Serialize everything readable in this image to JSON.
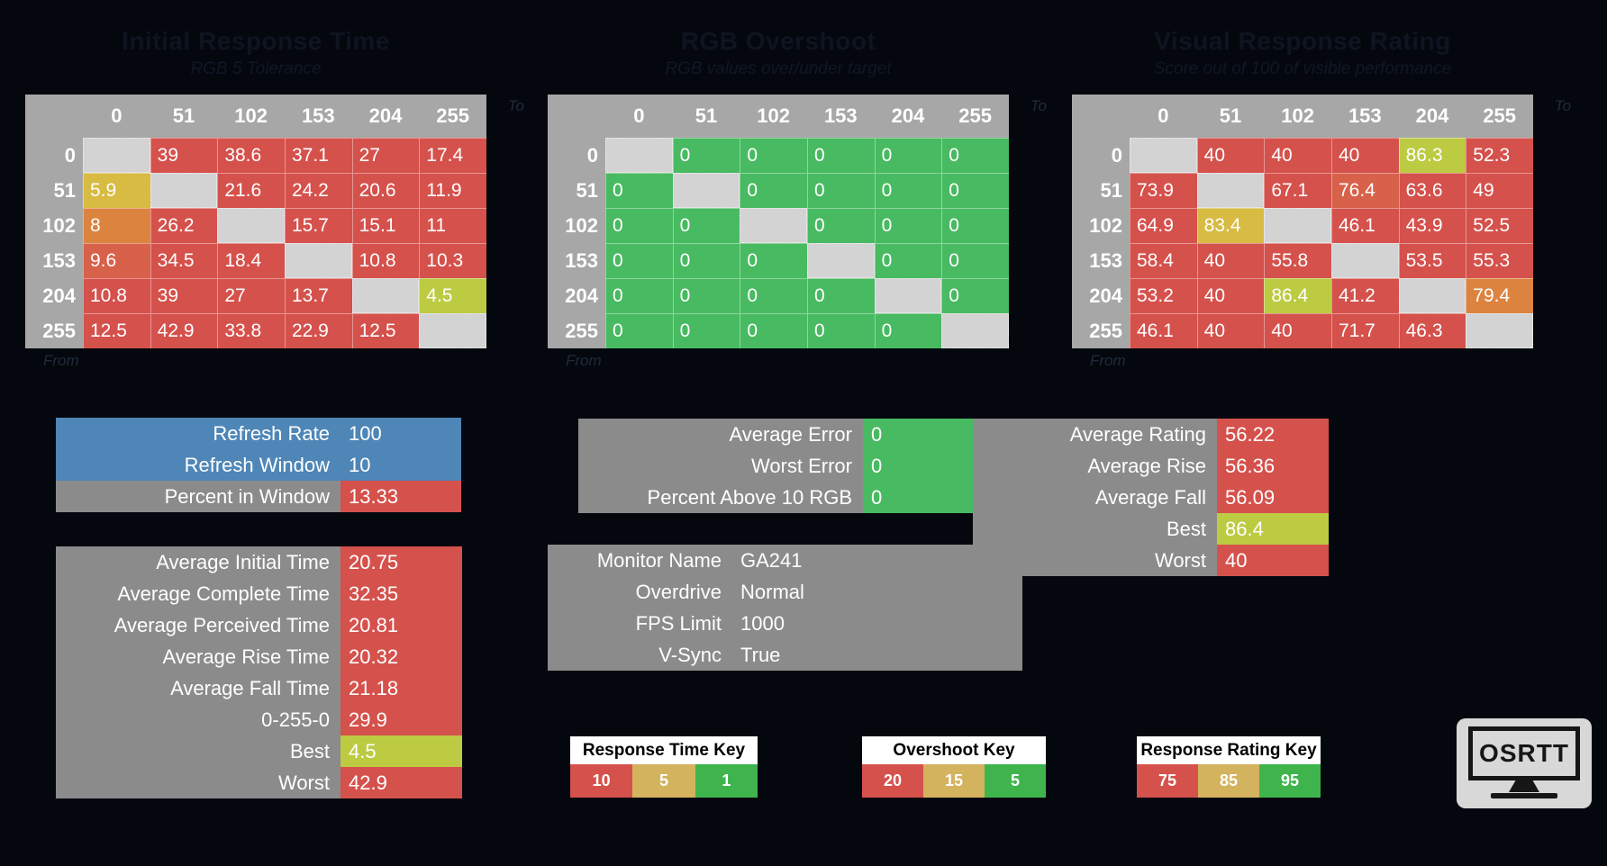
{
  "colors": {
    "bg": "#04080e",
    "header_grey": "#a7a7a7",
    "diag": "#d3d3d3",
    "red": "#d5514c",
    "red_orange": "#d8614a",
    "orange": "#dd8340",
    "yellow": "#d7bb42",
    "yellow_green": "#bccb42",
    "green": "#48ba61",
    "key_green": "#3fb44d",
    "tan": "#d3b35e",
    "blue": "#4e86b7",
    "grey": "#8b8b8b"
  },
  "chart_data": [
    {
      "type": "heatmap",
      "title": "Initial Response Time",
      "subtitle": "RGB 5 Tolerance",
      "axis_top_label": "To",
      "axis_left_label": "From",
      "x_labels": [
        "0",
        "51",
        "102",
        "153",
        "204",
        "255"
      ],
      "y_labels": [
        "0",
        "51",
        "102",
        "153",
        "204",
        "255"
      ],
      "values": [
        [
          null,
          39,
          38.6,
          37.1,
          27,
          17.4
        ],
        [
          5.9,
          null,
          21.6,
          24.2,
          20.6,
          11.9
        ],
        [
          8,
          26.2,
          null,
          15.7,
          15.1,
          11
        ],
        [
          9.6,
          34.5,
          18.4,
          null,
          10.8,
          10.3
        ],
        [
          10.8,
          39,
          27,
          13.7,
          null,
          4.5
        ],
        [
          12.5,
          42.9,
          33.8,
          22.9,
          12.5,
          null
        ]
      ],
      "cell_colors": [
        [
          "diag",
          "red",
          "red",
          "red",
          "red",
          "red"
        ],
        [
          "yellow",
          "diag",
          "red",
          "red",
          "red",
          "red"
        ],
        [
          "orange",
          "red",
          "diag",
          "red",
          "red",
          "red"
        ],
        [
          "red_orange",
          "red",
          "red",
          "diag",
          "red",
          "red"
        ],
        [
          "red",
          "red",
          "red",
          "red",
          "diag",
          "yellow_green"
        ],
        [
          "red",
          "red",
          "red",
          "red",
          "red",
          "diag"
        ]
      ]
    },
    {
      "type": "heatmap",
      "title": "RGB Overshoot",
      "subtitle": "RGB values over/under target",
      "axis_top_label": "To",
      "axis_left_label": "From",
      "x_labels": [
        "0",
        "51",
        "102",
        "153",
        "204",
        "255"
      ],
      "y_labels": [
        "0",
        "51",
        "102",
        "153",
        "204",
        "255"
      ],
      "values": [
        [
          null,
          0,
          0,
          0,
          0,
          0
        ],
        [
          0,
          null,
          0,
          0,
          0,
          0
        ],
        [
          0,
          0,
          null,
          0,
          0,
          0
        ],
        [
          0,
          0,
          0,
          null,
          0,
          0
        ],
        [
          0,
          0,
          0,
          0,
          null,
          0
        ],
        [
          0,
          0,
          0,
          0,
          0,
          null
        ]
      ],
      "cell_colors": [
        [
          "diag",
          "green",
          "green",
          "green",
          "green",
          "green"
        ],
        [
          "green",
          "diag",
          "green",
          "green",
          "green",
          "green"
        ],
        [
          "green",
          "green",
          "diag",
          "green",
          "green",
          "green"
        ],
        [
          "green",
          "green",
          "green",
          "diag",
          "green",
          "green"
        ],
        [
          "green",
          "green",
          "green",
          "green",
          "diag",
          "green"
        ],
        [
          "green",
          "green",
          "green",
          "green",
          "green",
          "diag"
        ]
      ]
    },
    {
      "type": "heatmap",
      "title": "Visual Response Rating",
      "subtitle": "Score out of 100 of visible performance",
      "axis_top_label": "To",
      "axis_left_label": "From",
      "x_labels": [
        "0",
        "51",
        "102",
        "153",
        "204",
        "255"
      ],
      "y_labels": [
        "0",
        "51",
        "102",
        "153",
        "204",
        "255"
      ],
      "values": [
        [
          null,
          40,
          40,
          40,
          86.3,
          52.3
        ],
        [
          73.9,
          null,
          67.1,
          76.4,
          63.6,
          49
        ],
        [
          64.9,
          83.4,
          null,
          46.1,
          43.9,
          52.5
        ],
        [
          58.4,
          40,
          55.8,
          null,
          53.5,
          55.3
        ],
        [
          53.2,
          40,
          86.4,
          41.2,
          null,
          79.4
        ],
        [
          46.1,
          40,
          40,
          71.7,
          46.3,
          null
        ]
      ],
      "cell_colors": [
        [
          "diag",
          "red",
          "red",
          "red",
          "yellow_green",
          "red"
        ],
        [
          "red",
          "diag",
          "red",
          "red_orange",
          "red",
          "red"
        ],
        [
          "red",
          "yellow",
          "diag",
          "red",
          "red",
          "red"
        ],
        [
          "red",
          "red",
          "red",
          "diag",
          "red",
          "red"
        ],
        [
          "red",
          "red",
          "yellow_green",
          "red",
          "diag",
          "orange"
        ],
        [
          "red",
          "red",
          "red",
          "red",
          "red",
          "diag"
        ]
      ]
    }
  ],
  "summary_boxes": {
    "refresh": {
      "rows": [
        {
          "label": "Refresh Rate",
          "value": "100",
          "label_bg": "blue",
          "value_bg": "blue"
        },
        {
          "label": "Refresh Window",
          "value": "10",
          "label_bg": "blue",
          "value_bg": "blue"
        },
        {
          "label": "Percent in Window",
          "value": "13.33",
          "label_bg": "grey",
          "value_bg": "red"
        }
      ]
    },
    "error": {
      "rows": [
        {
          "label": "Average Error",
          "value": "0",
          "label_bg": "grey",
          "value_bg": "green"
        },
        {
          "label": "Worst Error",
          "value": "0",
          "label_bg": "grey",
          "value_bg": "green"
        },
        {
          "label": "Percent Above 10 RGB",
          "value": "0",
          "label_bg": "grey",
          "value_bg": "green"
        }
      ]
    },
    "rating": {
      "rows": [
        {
          "label": "Average Rating",
          "value": "56.22",
          "label_bg": "grey",
          "value_bg": "red"
        },
        {
          "label": "Average Rise",
          "value": "56.36",
          "label_bg": "grey",
          "value_bg": "red"
        },
        {
          "label": "Average Fall",
          "value": "56.09",
          "label_bg": "grey",
          "value_bg": "red"
        },
        {
          "label": "Best",
          "value": "86.4",
          "label_bg": "grey",
          "value_bg": "yellow_green"
        },
        {
          "label": "Worst",
          "value": "40",
          "label_bg": "grey",
          "value_bg": "red"
        }
      ]
    },
    "times": {
      "rows": [
        {
          "label": "Average Initial Time",
          "value": "20.75",
          "label_bg": "grey",
          "value_bg": "red"
        },
        {
          "label": "Average Complete Time",
          "value": "32.35",
          "label_bg": "grey",
          "value_bg": "red"
        },
        {
          "label": "Average Perceived Time",
          "value": "20.81",
          "label_bg": "grey",
          "value_bg": "red"
        },
        {
          "label": "Average Rise Time",
          "value": "20.32",
          "label_bg": "grey",
          "value_bg": "red"
        },
        {
          "label": "Average Fall Time",
          "value": "21.18",
          "label_bg": "grey",
          "value_bg": "red"
        },
        {
          "label": "0-255-0",
          "value": "29.9",
          "label_bg": "grey",
          "value_bg": "red"
        },
        {
          "label": "Best",
          "value": "4.5",
          "label_bg": "grey",
          "value_bg": "yellow_green"
        },
        {
          "label": "Worst",
          "value": "42.9",
          "label_bg": "grey",
          "value_bg": "red"
        }
      ]
    },
    "monitor": {
      "rows": [
        {
          "label": "Monitor Name",
          "value": "GA241",
          "label_bg": "grey",
          "value_bg": "grey"
        },
        {
          "label": "Overdrive",
          "value": "Normal",
          "label_bg": "grey",
          "value_bg": "grey"
        },
        {
          "label": "FPS Limit",
          "value": "1000",
          "label_bg": "grey",
          "value_bg": "grey"
        },
        {
          "label": "V-Sync",
          "value": "True",
          "label_bg": "grey",
          "value_bg": "grey"
        }
      ]
    }
  },
  "keys": [
    {
      "title": "Response Time Key",
      "cells": [
        {
          "value": "10",
          "color": "red"
        },
        {
          "value": "5",
          "color": "tan"
        },
        {
          "value": "1",
          "color": "key_green"
        }
      ]
    },
    {
      "title": "Overshoot Key",
      "cells": [
        {
          "value": "20",
          "color": "red"
        },
        {
          "value": "15",
          "color": "tan"
        },
        {
          "value": "5",
          "color": "key_green"
        }
      ]
    },
    {
      "title": "Response Rating Key",
      "cells": [
        {
          "value": "75",
          "color": "red"
        },
        {
          "value": "85",
          "color": "tan"
        },
        {
          "value": "95",
          "color": "key_green"
        }
      ]
    }
  ],
  "logo": {
    "text": "OSRTT"
  }
}
